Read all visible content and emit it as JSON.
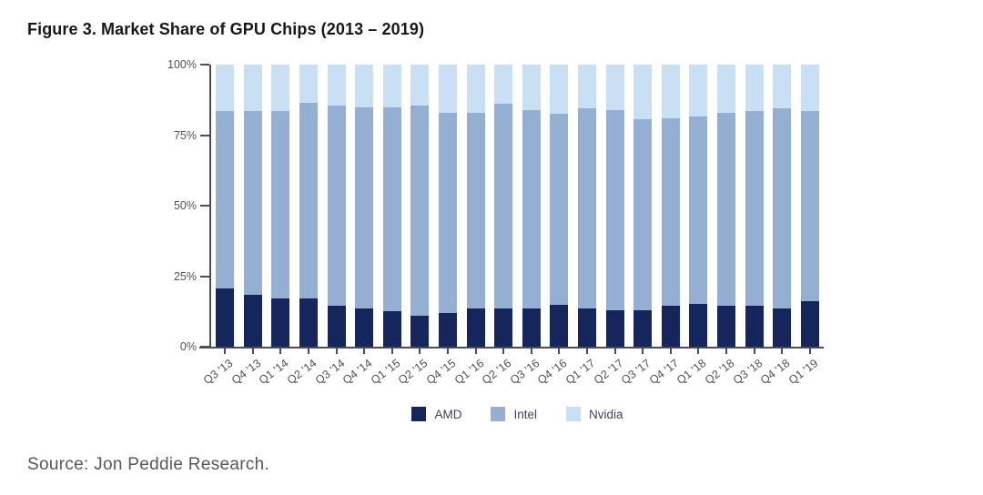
{
  "figure": {
    "title": "Figure 3. Market Share of GPU Chips (2013 – 2019)",
    "source": "Source: Jon Peddie Research."
  },
  "chart_data": {
    "type": "bar",
    "stacked": true,
    "title": "Figure 3. Market Share of GPU Chips (2013 – 2019)",
    "categories": [
      "Q3 '13",
      "Q4 '13",
      "Q1 '14",
      "Q2 '14",
      "Q3 '14",
      "Q4 '14",
      "Q1 '15",
      "Q2 '15",
      "Q4 '15",
      "Q1 '16",
      "Q2 '16",
      "Q3 '16",
      "Q4 '16",
      "Q1 '17",
      "Q2 '17",
      "Q3 '17",
      "Q4 '17",
      "Q1 '18",
      "Q2 '18",
      "Q3 '18",
      "Q4 '18",
      "Q1 '19"
    ],
    "series": [
      {
        "name": "AMD",
        "color": "#15265c",
        "values": [
          20.5,
          18.5,
          17,
          17,
          14.5,
          13.5,
          12.5,
          11,
          12,
          13.5,
          13.5,
          13.5,
          15,
          13.5,
          13,
          13,
          14.5,
          15,
          14.5,
          14.5,
          13.5,
          16
        ]
      },
      {
        "name": "Intel",
        "color": "#94afd2",
        "values": [
          63,
          65,
          66.5,
          69.5,
          71,
          71.5,
          72.5,
          74.5,
          71,
          69.5,
          72.5,
          70.5,
          67.5,
          71,
          71,
          67.5,
          66.5,
          66.5,
          68.5,
          69,
          71,
          67.5
        ]
      },
      {
        "name": "Nvidia",
        "color": "#c9e0f4",
        "values": [
          16.5,
          16.5,
          16.5,
          13.5,
          14.5,
          15,
          15,
          14.5,
          17,
          17,
          14,
          16,
          17.5,
          15.5,
          16,
          19.5,
          19,
          18.5,
          17,
          16.5,
          15.5,
          16.5
        ]
      }
    ],
    "xlabel": "",
    "ylabel": "",
    "ylim": [
      0,
      100
    ],
    "y_tick_labels": [
      "0%",
      "25%",
      "50%",
      "75%",
      "100%"
    ],
    "y_tick_step": 25,
    "grid": false,
    "legend_position": "bottom",
    "axis_color": "#4c4d4f",
    "tick_label_color": "#515256"
  }
}
